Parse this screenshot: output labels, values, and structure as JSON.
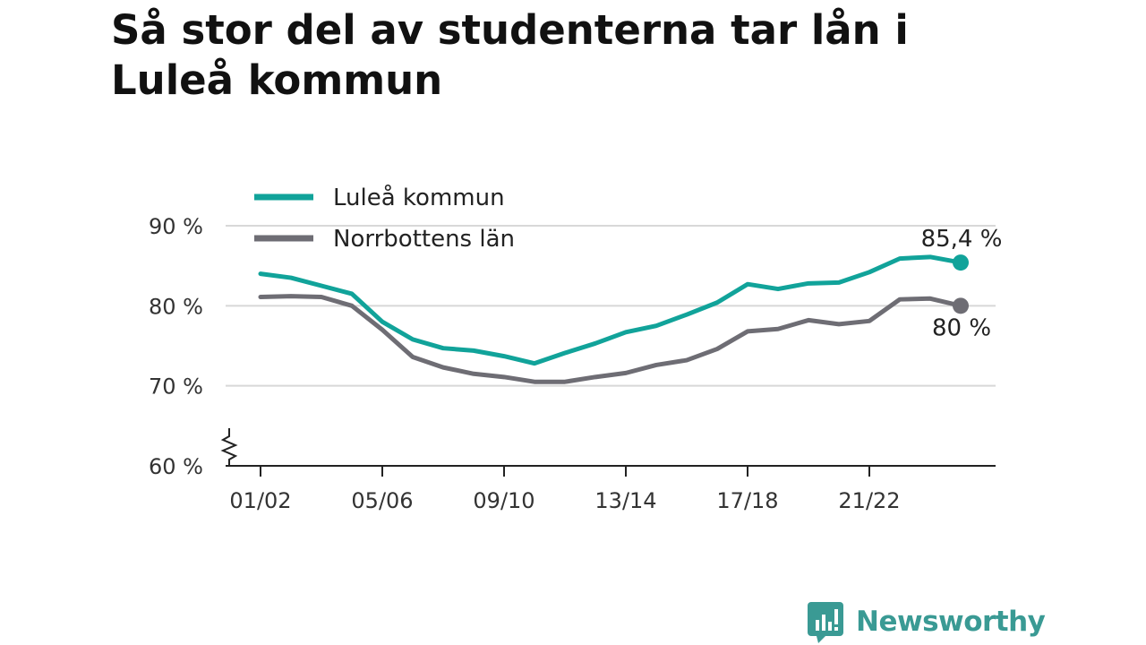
{
  "title": "Så stor del av studenterna tar lån i Luleå kommun",
  "logo_text": "Newsworthy",
  "colors": {
    "accent": "#11a39a",
    "secondary": "#6e6d74",
    "grid": "#d8d8d8",
    "logo": "#3a9a94"
  },
  "chart_data": {
    "type": "line",
    "title": "Så stor del av studenterna tar lån i Luleå kommun",
    "xlabel": "",
    "ylabel": "",
    "x": [
      "01/02",
      "02/03",
      "03/04",
      "04/05",
      "05/06",
      "06/07",
      "07/08",
      "08/09",
      "09/10",
      "10/11",
      "11/12",
      "12/13",
      "13/14",
      "14/15",
      "15/16",
      "16/17",
      "17/18",
      "18/19",
      "19/20",
      "20/21",
      "21/22",
      "22/23",
      "23/24",
      "24/25"
    ],
    "x_tick_labels": [
      "01/02",
      "05/06",
      "09/10",
      "13/14",
      "17/18",
      "21/22"
    ],
    "y_ticks": [
      60,
      70,
      80,
      90
    ],
    "y_tick_labels": [
      "60 %",
      "70 %",
      "80 %",
      "90 %"
    ],
    "ylim": [
      60,
      90
    ],
    "y_axis_break": true,
    "grid": true,
    "legend": "top-left",
    "series": [
      {
        "name": "Luleå kommun",
        "color": "#11a39a",
        "values": [
          84.0,
          83.5,
          82.5,
          81.5,
          78.0,
          75.8,
          74.7,
          74.4,
          73.7,
          72.8,
          74.1,
          75.3,
          76.7,
          77.5,
          78.9,
          80.4,
          82.7,
          82.1,
          82.8,
          82.9,
          84.2,
          85.9,
          86.1,
          85.4
        ],
        "end_label": "85,4 %"
      },
      {
        "name": "Norrbottens län",
        "color": "#6e6d74",
        "values": [
          81.1,
          81.2,
          81.1,
          80.0,
          77.0,
          73.6,
          72.3,
          71.5,
          71.1,
          70.5,
          70.5,
          71.1,
          71.6,
          72.6,
          73.2,
          74.6,
          76.8,
          77.1,
          78.2,
          77.7,
          78.1,
          80.8,
          80.9,
          80.0
        ],
        "end_label": "80 %"
      }
    ]
  }
}
